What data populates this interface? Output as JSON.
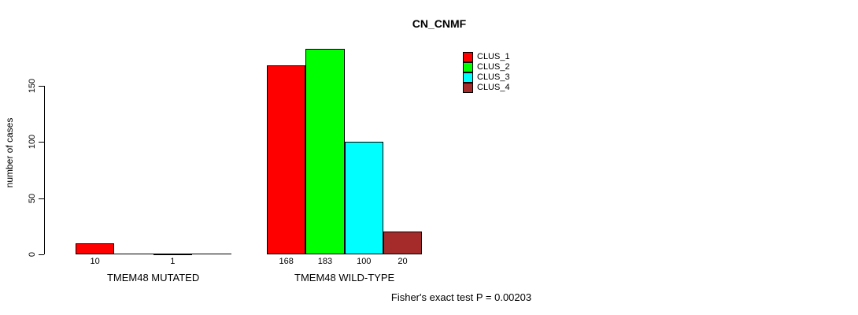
{
  "chart_data": {
    "type": "bar",
    "title": "CN_CNMF",
    "ylabel": "number of cases",
    "xlabel": "",
    "categories": [
      "TMEM48 MUTATED",
      "TMEM48 WILD-TYPE"
    ],
    "series": [
      {
        "name": "CLUS_1",
        "color": "#ff0000",
        "values": [
          10,
          168
        ]
      },
      {
        "name": "CLUS_2",
        "color": "#00ff00",
        "values": [
          0,
          183
        ]
      },
      {
        "name": "CLUS_3",
        "color": "#00ffff",
        "values": [
          1,
          100
        ]
      },
      {
        "name": "CLUS_4",
        "color": "#a52a2a",
        "values": [
          0,
          20
        ]
      }
    ],
    "yticks": [
      0,
      50,
      100,
      150
    ],
    "axis_range": [
      0,
      150
    ],
    "bar_labels_shown": [
      [
        10,
        null,
        1,
        null
      ],
      [
        168,
        183,
        100,
        20
      ]
    ],
    "grid": false,
    "legend_position": "top-right",
    "bar_border_color": "#000000",
    "annotation": "Fisher's exact test P = 0.00203"
  }
}
